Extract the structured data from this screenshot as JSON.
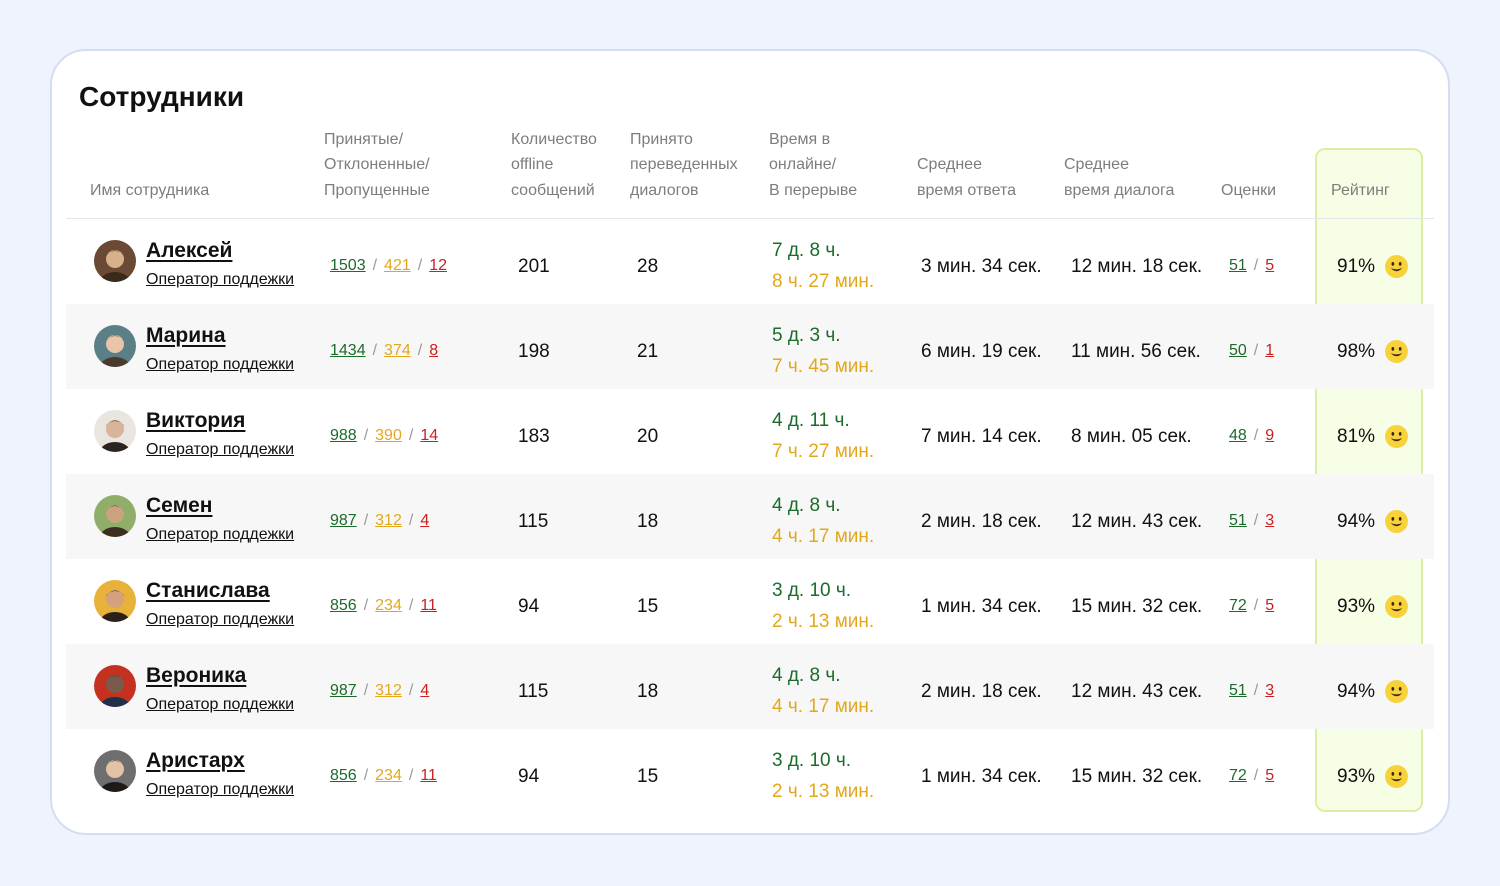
{
  "page": {
    "title": "Сотрудники"
  },
  "headers": {
    "name": [
      "Имя сотрудника"
    ],
    "counts": [
      "Принятые/",
      "Отклоненные/",
      "Пропущенные"
    ],
    "offline": [
      "Количество",
      "offline",
      "сообщений"
    ],
    "transferred": [
      "Принято",
      "переведенных",
      "диалогов"
    ],
    "online_time": [
      "Время в",
      "онлайне/",
      "В перерыве"
    ],
    "avg_response": [
      "Среднее",
      "время ответа"
    ],
    "avg_dialog": [
      "Среднее",
      "время диалога"
    ],
    "grades": [
      "Оценки"
    ],
    "rating": [
      "Рейтинг"
    ]
  },
  "colors": {
    "accepted": "#1b6b2a",
    "rejected": "#e2a81c",
    "missed": "#cc1f1f",
    "rating_bg": "#f6ffe6",
    "rating_border": "#d9f0a3",
    "smile": "#f7d23a"
  },
  "rating_icon": "smiling-face-icon",
  "employees": [
    {
      "name": "Алексей",
      "role": "Оператор поддежки",
      "accepted": "1503",
      "rejected": "421",
      "missed": "12",
      "offline": "201",
      "transferred": "28",
      "online": "7 д. 8 ч.",
      "break": "8 ч. 27 мин.",
      "avg_response": "3 мин. 34 сек.",
      "avg_dialog": "12 мин. 18 сек.",
      "grades_good": "51",
      "grades_bad": "5",
      "rating": "91%"
    },
    {
      "name": "Марина",
      "role": "Оператор поддежки",
      "accepted": "1434",
      "rejected": "374",
      "missed": "8",
      "offline": "198",
      "transferred": "21",
      "online": "5 д. 3 ч.",
      "break": "7 ч. 45 мин.",
      "avg_response": "6 мин. 19 сек.",
      "avg_dialog": "11 мин. 56 сек.",
      "grades_good": "50",
      "grades_bad": "1",
      "rating": "98%"
    },
    {
      "name": "Виктория",
      "role": "Оператор поддежки",
      "accepted": "988",
      "rejected": "390",
      "missed": "14",
      "offline": "183",
      "transferred": "20",
      "online": "4 д. 11 ч.",
      "break": "7 ч. 27 мин.",
      "avg_response": "7 мин. 14 сек.",
      "avg_dialog": "8 мин. 05 сек.",
      "grades_good": "48",
      "grades_bad": "9",
      "rating": "81%"
    },
    {
      "name": "Семен",
      "role": "Оператор поддежки",
      "accepted": "987",
      "rejected": "312",
      "missed": "4",
      "offline": "115",
      "transferred": "18",
      "online": "4 д. 8 ч.",
      "break": "4 ч. 17 мин.",
      "avg_response": "2 мин. 18 сек.",
      "avg_dialog": "12 мин. 43 сек.",
      "grades_good": "51",
      "grades_bad": "3",
      "rating": "94%"
    },
    {
      "name": "Станислава",
      "role": "Оператор поддежки",
      "accepted": "856",
      "rejected": "234",
      "missed": "11",
      "offline": "94",
      "transferred": "15",
      "online": "3 д. 10 ч.",
      "break": "2 ч. 13 мин.",
      "avg_response": "1 мин. 34 сек.",
      "avg_dialog": "15 мин. 32 сек.",
      "grades_good": "72",
      "grades_bad": "5",
      "rating": "93%"
    },
    {
      "name": "Вероника",
      "role": "Оператор поддежки",
      "accepted": "987",
      "rejected": "312",
      "missed": "4",
      "offline": "115",
      "transferred": "18",
      "online": "4 д. 8 ч.",
      "break": "4 ч. 17 мин.",
      "avg_response": "2 мин. 18 сек.",
      "avg_dialog": "12 мин. 43 сек.",
      "grades_good": "51",
      "grades_bad": "3",
      "rating": "94%"
    },
    {
      "name": "Аристарх",
      "role": "Оператор поддежки",
      "accepted": "856",
      "rejected": "234",
      "missed": "11",
      "offline": "94",
      "transferred": "15",
      "online": "3 д. 10 ч.",
      "break": "2 ч. 13 мин.",
      "avg_response": "1 мин. 34 сек.",
      "avg_dialog": "15 мин. 32 сек.",
      "grades_good": "72",
      "grades_bad": "5",
      "rating": "93%"
    }
  ]
}
